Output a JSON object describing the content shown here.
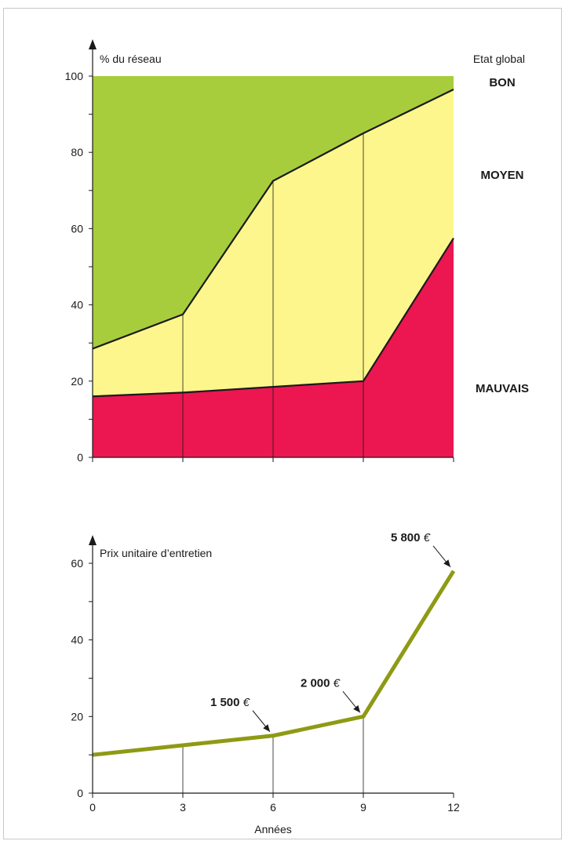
{
  "chart_data": [
    {
      "type": "area",
      "ylabel": "% du réseau",
      "legend_title": "Etat global",
      "x": [
        0,
        3,
        6,
        9,
        12
      ],
      "xlim": [
        0,
        12
      ],
      "ylim": [
        0,
        100
      ],
      "yticks": [
        "0",
        "20",
        "40",
        "60",
        "80",
        "100"
      ],
      "series": [
        {
          "name": "MAUVAIS",
          "color": "#ec1651",
          "values": [
            16,
            17,
            18.5,
            20,
            57.5
          ]
        },
        {
          "name": "MOYEN",
          "color": "#fdf68c",
          "values": [
            12.5,
            20.5,
            54,
            65,
            39
          ]
        },
        {
          "name": "BON",
          "color": "#a7cd3c",
          "values": [
            71.5,
            62.5,
            27.5,
            15,
            3.5
          ]
        }
      ],
      "cumulative_boundaries": [
        {
          "values": [
            16,
            17,
            18.5,
            20,
            57.5
          ]
        },
        {
          "values": [
            28.5,
            37.5,
            72.5,
            85,
            96.5
          ]
        }
      ]
    },
    {
      "type": "line",
      "ylabel": "Prix unitaire d’entretien",
      "xlabel": "Années",
      "x": [
        0,
        3,
        6,
        9,
        12
      ],
      "xticks": [
        "0",
        "3",
        "6",
        "9",
        "12"
      ],
      "xlim": [
        0,
        12
      ],
      "ylim": [
        0,
        60
      ],
      "yticks": [
        "0",
        "20",
        "40",
        "60"
      ],
      "series": [
        {
          "color": "#8e9a14",
          "values": [
            10,
            12.5,
            15,
            20,
            58
          ]
        }
      ],
      "annotations": [
        {
          "x": 6,
          "y": 15,
          "value": "1 500",
          "unit": "€"
        },
        {
          "x": 9,
          "y": 20,
          "value": "2 000",
          "unit": "€"
        },
        {
          "x": 12,
          "y": 58,
          "value": "5 800",
          "unit": "€"
        }
      ]
    }
  ]
}
